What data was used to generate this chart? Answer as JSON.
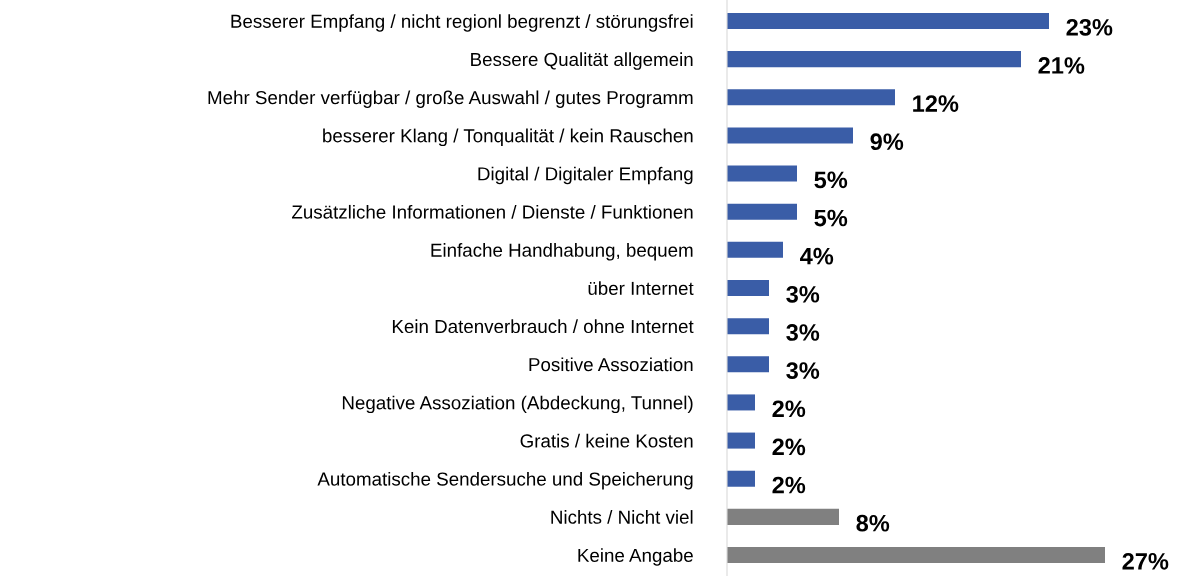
{
  "chart_data": {
    "type": "bar",
    "orientation": "horizontal",
    "data_labels": true,
    "grid": false,
    "legend": false,
    "tick_labels": "y",
    "categories": [
      "Besserer Empfang / nicht regionl begrenzt / störungsfrei",
      "Bessere Qualität allgemein",
      "Mehr Sender verfügbar / große Auswahl / gutes Programm",
      "besserer Klang / Tonqualität / kein Rauschen",
      "Digital / Digitaler Empfang",
      "Zusätzliche Informationen / Dienste / Funktionen",
      "Einfache Handhabung, bequem",
      "über Internet",
      "Kein Datenverbrauch / ohne Internet",
      "Positive Assoziation",
      "Negative Assoziation (Abdeckung, Tunnel)",
      "Gratis / keine Kosten",
      "Automatische Sendersuche und Speicherung",
      "Nichts / Nicht viel",
      "Keine Angabe"
    ],
    "values": [
      23,
      21,
      12,
      9,
      5,
      5,
      4,
      3,
      3,
      3,
      2,
      2,
      2,
      8,
      27
    ],
    "value_labels": [
      "23%",
      "21%",
      "12%",
      "9%",
      "5%",
      "5%",
      "4%",
      "3%",
      "3%",
      "3%",
      "2%",
      "2%",
      "2%",
      "8%",
      "27%"
    ],
    "colors": [
      "#3a5da7",
      "#3a5da7",
      "#3a5da7",
      "#3a5da7",
      "#3a5da7",
      "#3a5da7",
      "#3a5da7",
      "#3a5da7",
      "#3a5da7",
      "#3a5da7",
      "#3a5da7",
      "#3a5da7",
      "#3a5da7",
      "#808080",
      "#808080"
    ]
  }
}
